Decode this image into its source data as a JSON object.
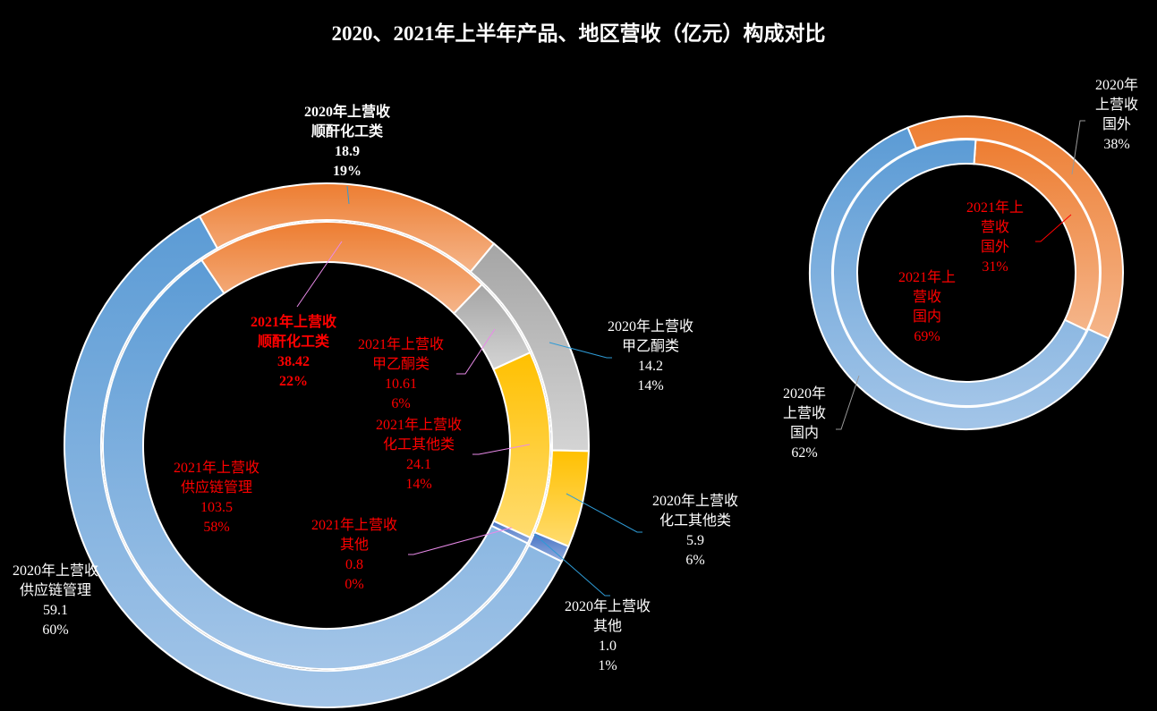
{
  "title": "2020、2021年上半年产品、地区营收（亿元）构成对比",
  "chart_data": [
    {
      "type": "doughnut",
      "categories": [
        "顺酐化工类",
        "甲乙酮类",
        "化工其他类",
        "其他",
        "供应链管理"
      ],
      "colors": [
        "#ED7D31",
        "#A5A5A5",
        "#FFC000",
        "#4472C4",
        "#5B9BD5"
      ],
      "series": [
        {
          "name": "2020年上营收",
          "ring": "outer",
          "values": [
            "18.9",
            "14.2",
            "5.9",
            "1.0",
            "59.1"
          ],
          "percents": [
            "19%",
            "14%",
            "6%",
            "1%",
            "60%"
          ],
          "label_color": "#FFFFFF"
        },
        {
          "name": "2021年上营收",
          "ring": "inner",
          "values": [
            "38.42",
            "10.61",
            "24.1",
            "0.8",
            "103.5"
          ],
          "percents": [
            "22%",
            "6%",
            "14%",
            "0%",
            "58%"
          ],
          "label_color": "#FF0000"
        }
      ]
    },
    {
      "type": "doughnut",
      "categories": [
        "国外",
        "国内"
      ],
      "colors": [
        "#ED7D31",
        "#5B9BD5"
      ],
      "series": [
        {
          "name": "2020年上营收",
          "ring": "outer",
          "percents": [
            "38%",
            "62%"
          ],
          "label_color": "#FFFFFF"
        },
        {
          "name": "2021年上营收",
          "ring": "inner",
          "percents": [
            "31%",
            "69%"
          ],
          "label_color": "#FF0000"
        }
      ]
    }
  ]
}
